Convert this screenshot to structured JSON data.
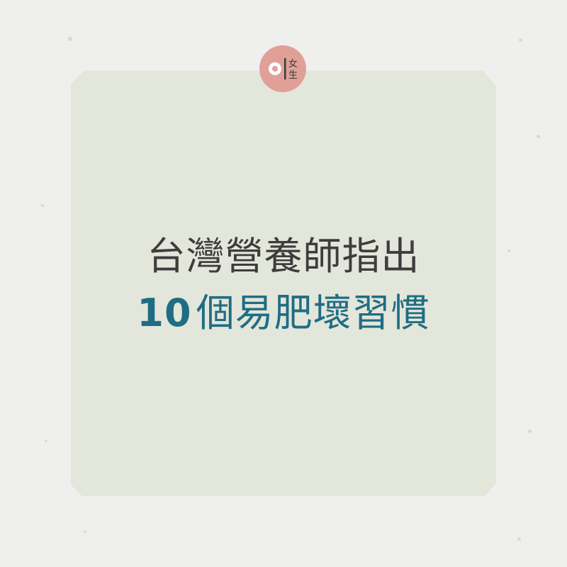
{
  "logo": {
    "icon": "01-logo-icon",
    "chars": [
      "女",
      "生"
    ],
    "color": "#e0a097"
  },
  "headline": {
    "line1": "台灣營養師指出",
    "line2_number": "10",
    "line2_text": "個易肥壞習慣"
  },
  "colors": {
    "background": "#efefed",
    "card": "#e3e6da",
    "line1": "#3d3d3b",
    "line2": "#1f6d84"
  }
}
